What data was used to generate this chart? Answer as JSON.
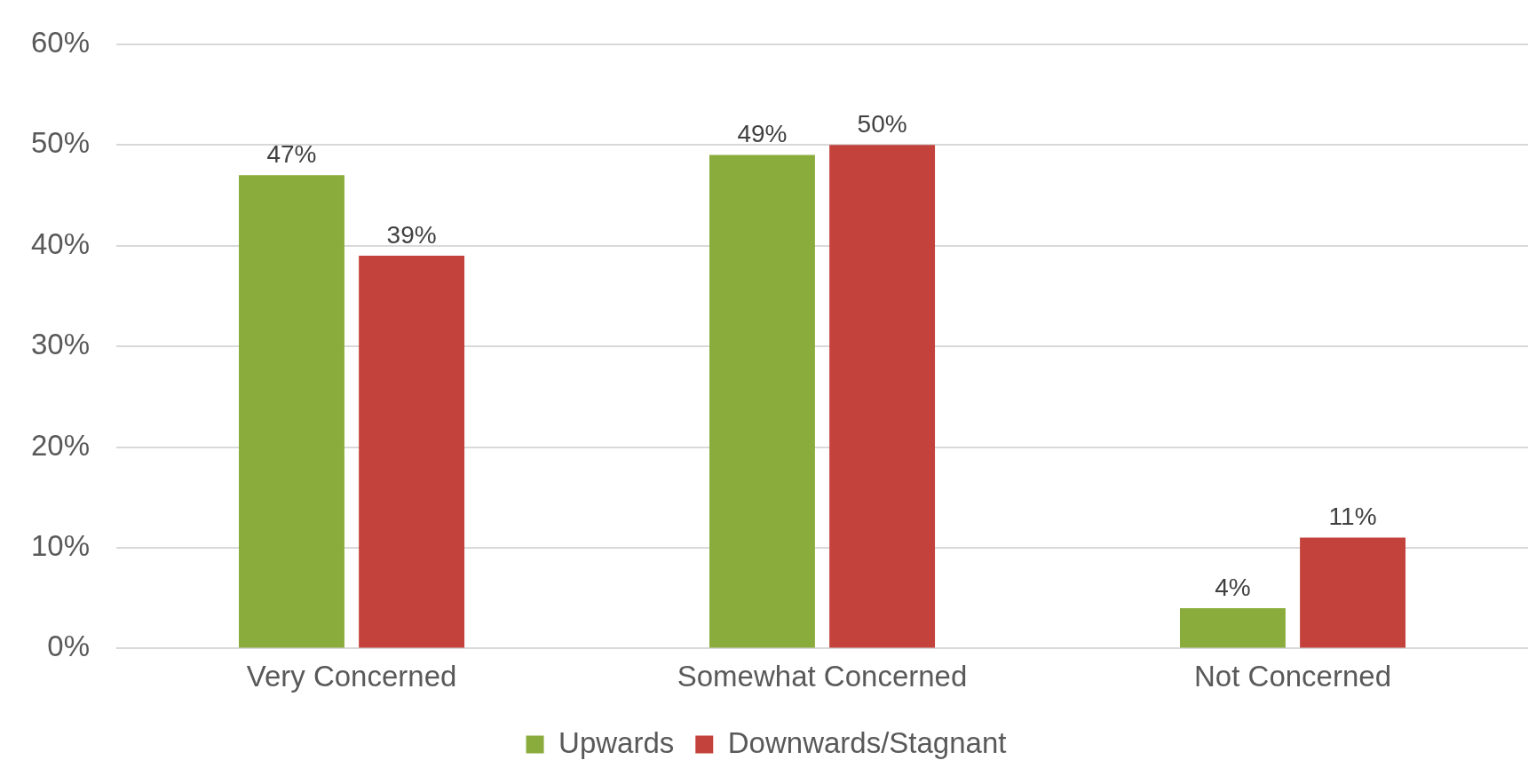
{
  "chart_data": {
    "type": "bar",
    "categories": [
      "Very Concerned",
      "Somewhat Concerned",
      "Not Concerned"
    ],
    "series": [
      {
        "name": "Upwards",
        "color": "#8aac3c",
        "values": [
          47,
          49,
          4
        ],
        "value_labels": [
          "47%",
          "49%",
          "4%"
        ]
      },
      {
        "name": "Downwards/Stagnant",
        "color": "#c4423c",
        "values": [
          39,
          50,
          11
        ],
        "value_labels": [
          "39%",
          "50%",
          "11%"
        ]
      }
    ],
    "ylim": [
      0,
      60
    ],
    "yticks": [
      {
        "value": 0,
        "label": "0%"
      },
      {
        "value": 10,
        "label": "10%"
      },
      {
        "value": 20,
        "label": "20%"
      },
      {
        "value": 30,
        "label": "30%"
      },
      {
        "value": 40,
        "label": "40%"
      },
      {
        "value": 50,
        "label": "50%"
      },
      {
        "value": 60,
        "label": "60%"
      }
    ],
    "grid": "y",
    "legend": "bottom"
  }
}
